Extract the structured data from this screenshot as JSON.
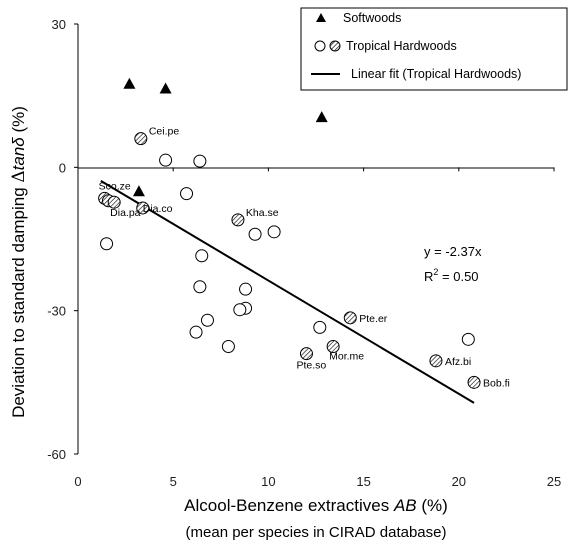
{
  "chart_data": {
    "type": "scatter",
    "xlabel": "Alcool-Benzene extractives AB (%)",
    "xlabel_sub": "(mean per species in CIRAD database)",
    "ylabel": "Deviation to standard damping Δtanδ (%)",
    "xlim": [
      0,
      25
    ],
    "ylim": [
      -60,
      30
    ],
    "xticks": [
      "0",
      "5",
      "10",
      "15",
      "20",
      "25"
    ],
    "yticks": [
      "30",
      "0",
      "-30",
      "-60"
    ],
    "grid": false,
    "legend_position": "top-right",
    "legend": {
      "softwoods": "Softwoods",
      "tropical": "Tropical Hardwoods",
      "fit": "Linear fit (Tropical Hardwoods)"
    },
    "annotation": {
      "equation": "y = -2.37x",
      "r2_prefix": "R",
      "r2_exp": "2",
      "r2_value": " = 0.50"
    },
    "fit": {
      "slope": -2.37,
      "x_range": [
        1.2,
        20.8
      ]
    },
    "series": [
      {
        "name": "Softwoods",
        "marker": "triangle",
        "points": [
          [
            2.7,
            17.5
          ],
          [
            4.6,
            16.5
          ],
          [
            12.8,
            10.5
          ],
          [
            3.2,
            -5.0
          ]
        ]
      },
      {
        "name": "Tropical Hardwoods",
        "marker": "circle",
        "points": [
          {
            "x": 4.6,
            "y": 1.5
          },
          {
            "x": 6.4,
            "y": 1.3
          },
          {
            "x": 5.7,
            "y": -5.5
          },
          {
            "x": 1.5,
            "y": -16.0
          },
          {
            "x": 6.5,
            "y": -18.5
          },
          {
            "x": 9.3,
            "y": -14.0
          },
          {
            "x": 10.3,
            "y": -13.5
          },
          {
            "x": 6.4,
            "y": -25.0
          },
          {
            "x": 8.8,
            "y": -25.5
          },
          {
            "x": 6.8,
            "y": -32.0
          },
          {
            "x": 8.8,
            "y": -29.5
          },
          {
            "x": 8.5,
            "y": -29.8
          },
          {
            "x": 6.2,
            "y": -34.5
          },
          {
            "x": 7.9,
            "y": -37.5
          },
          {
            "x": 12.7,
            "y": -33.5
          },
          {
            "x": 20.5,
            "y": -36.0
          },
          {
            "x": 3.3,
            "y": 6.0,
            "hatched": true,
            "label": "Cei.pe"
          },
          {
            "x": 1.4,
            "y": -6.5,
            "hatched": true,
            "label": "Sco.ze"
          },
          {
            "x": 1.6,
            "y": -7.0,
            "hatched": true
          },
          {
            "x": 1.9,
            "y": -7.3,
            "hatched": true,
            "label": "Dia.pa"
          },
          {
            "x": 3.4,
            "y": -8.5,
            "hatched": true,
            "label": "Dia.co"
          },
          {
            "x": 8.4,
            "y": -11.0,
            "hatched": true,
            "label": "Kha.se"
          },
          {
            "x": 14.3,
            "y": -31.5,
            "hatched": true,
            "label": "Pte.er"
          },
          {
            "x": 13.4,
            "y": -37.5,
            "hatched": true,
            "label": "Mor.me"
          },
          {
            "x": 12.0,
            "y": -39.0,
            "hatched": true,
            "label": "Pte.so"
          },
          {
            "x": 18.8,
            "y": -40.5,
            "hatched": true,
            "label": "Afz.bi"
          },
          {
            "x": 20.8,
            "y": -45.0,
            "hatched": true,
            "label": "Bob.fi"
          }
        ]
      }
    ]
  }
}
